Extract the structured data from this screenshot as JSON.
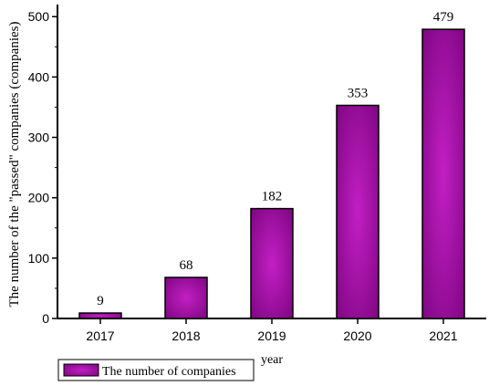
{
  "chart_data": {
    "type": "bar",
    "categories": [
      "2017",
      "2018",
      "2019",
      "2020",
      "2021"
    ],
    "series": [
      {
        "name": "The number of companies",
        "values": [
          9,
          68,
          182,
          353,
          479
        ]
      }
    ],
    "data_labels": [
      "9",
      "68",
      "182",
      "353",
      "479"
    ],
    "xlabel": "year",
    "ylabel": "The number of the \"passed\" companies (companies)",
    "ylim": [
      0,
      520
    ],
    "yticks": [
      0,
      100,
      200,
      300,
      400,
      500
    ],
    "grid": false,
    "legend_position": "bottom-left",
    "bar_color": "#9a0b9e"
  }
}
